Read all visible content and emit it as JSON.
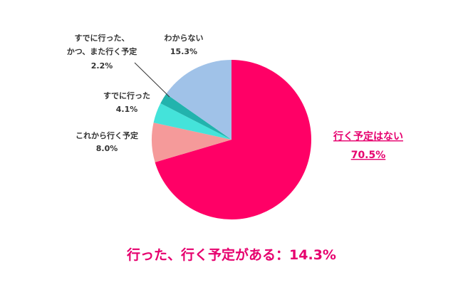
{
  "chart_data": {
    "type": "pie",
    "slices": [
      {
        "label": "行く予定はない",
        "value": 70.5,
        "value_label": "70.5%",
        "color": "#ff0066"
      },
      {
        "label": "これから行く予定",
        "value": 8.0,
        "value_label": "8.0%",
        "color": "#f59a9a"
      },
      {
        "label": "すでに行った",
        "value": 4.1,
        "value_label": "4.1%",
        "color": "#44e3da"
      },
      {
        "label_lines": [
          "すでに行った、",
          "かつ、また行く予定"
        ],
        "value": 2.2,
        "value_label": "2.2%",
        "color": "#22b3ad"
      },
      {
        "label": "わからない",
        "value": 15.3,
        "value_label": "15.3%",
        "color": "#a0c2e8"
      }
    ],
    "summary": "行った、行く予定がある：14.3%"
  },
  "colors": {
    "accent": "#e6006e",
    "label_text": "#333333"
  }
}
